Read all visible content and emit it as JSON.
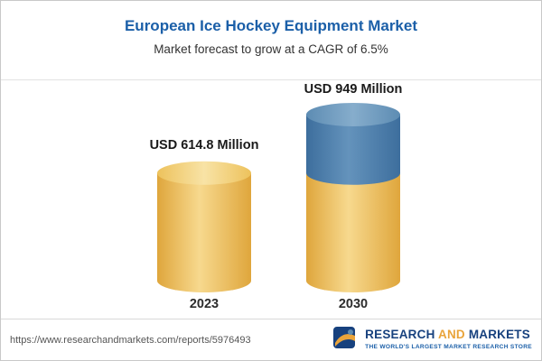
{
  "chart_data": {
    "type": "bar",
    "style": "cylinder-3d",
    "title": "European Ice Hockey Equipment Market",
    "subtitle": "Market forecast to grow at a CAGR of 6.5%",
    "cagr": "6.5%",
    "categories": [
      "2023",
      "2030"
    ],
    "values": [
      614.8,
      949
    ],
    "unit": "USD Million",
    "value_labels": [
      "USD 614.8 Million",
      "USD 949 Million"
    ],
    "legend": "none",
    "colors": {
      "base_segment_gold": "#EFC863",
      "growth_segment_blue": "#4A7CA8",
      "title_blue": "#1B5FA8"
    }
  },
  "footer": {
    "url": "https://www.researchandmarkets.com/reports/5976493",
    "logo": {
      "word1": "RESEARCH",
      "word2": "AND",
      "word3": "MARKETS",
      "tagline": "THE WORLD'S LARGEST MARKET RESEARCH STORE"
    }
  }
}
